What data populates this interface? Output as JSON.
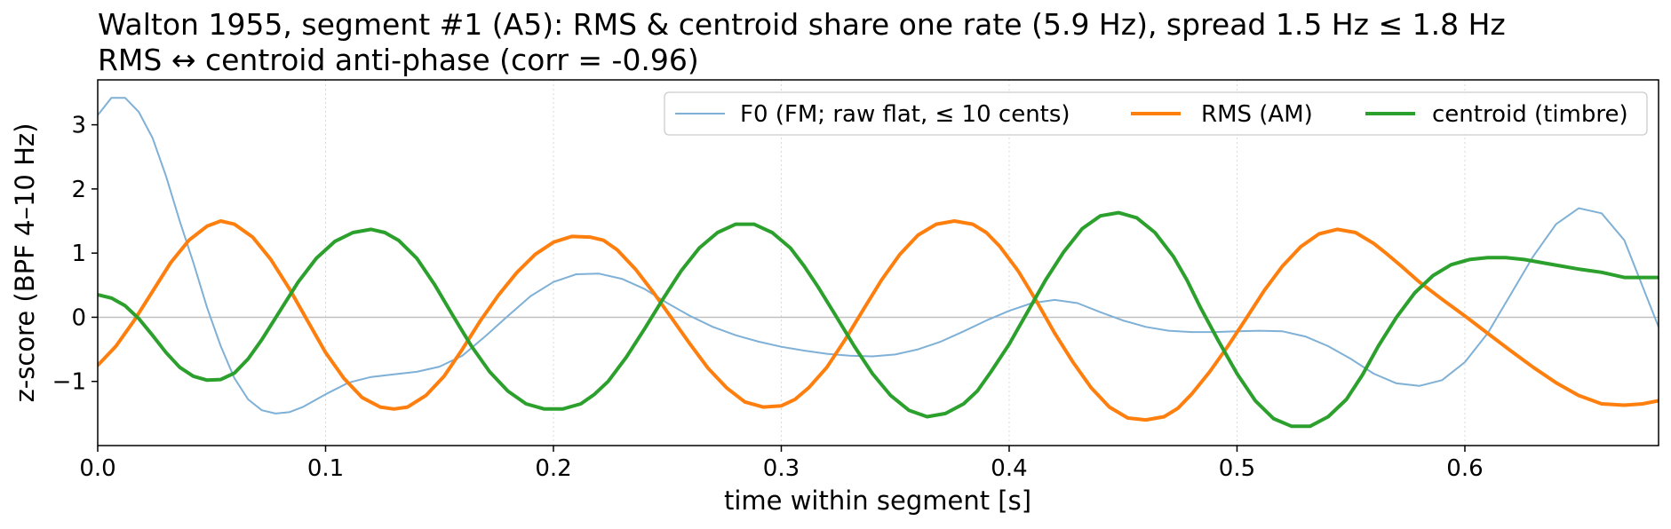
{
  "chart_data": {
    "type": "line",
    "title_line1": "Walton 1955, segment #1 (A5): RMS & centroid share one rate (5.9 Hz), spread 1.5 Hz ≤ 1.8 Hz",
    "title_line2": "RMS ↔ centroid anti-phase (corr = -0.96)",
    "xlabel": "time within segment [s]",
    "ylabel": "z-score (BPF 4–10 Hz)",
    "xlim": [
      0.0,
      0.685
    ],
    "ylim": [
      -2.0,
      3.7
    ],
    "xticks": [
      0.0,
      0.1,
      0.2,
      0.3,
      0.4,
      0.5,
      0.6
    ],
    "xtick_labels": [
      "0.0",
      "0.1",
      "0.2",
      "0.3",
      "0.4",
      "0.5",
      "0.6"
    ],
    "yticks": [
      -1,
      0,
      1,
      2,
      3
    ],
    "ytick_labels": [
      "−1",
      "0",
      "1",
      "2",
      "3"
    ],
    "grid": "vertical dotted",
    "zero_line": true,
    "legend": {
      "placement": "top-right",
      "columns": 3
    },
    "series": [
      {
        "name": "F0 (FM; raw flat, ≤ 10 cents)",
        "color": "#7fb0d6",
        "width": 2,
        "x": [
          0.0,
          0.006,
          0.012,
          0.018,
          0.024,
          0.03,
          0.036,
          0.042,
          0.048,
          0.054,
          0.06,
          0.066,
          0.072,
          0.078,
          0.084,
          0.09,
          0.1,
          0.11,
          0.12,
          0.13,
          0.14,
          0.15,
          0.16,
          0.17,
          0.18,
          0.19,
          0.2,
          0.21,
          0.22,
          0.23,
          0.24,
          0.25,
          0.26,
          0.27,
          0.28,
          0.29,
          0.3,
          0.31,
          0.32,
          0.33,
          0.34,
          0.35,
          0.36,
          0.37,
          0.38,
          0.39,
          0.4,
          0.41,
          0.42,
          0.43,
          0.44,
          0.45,
          0.46,
          0.47,
          0.48,
          0.49,
          0.5,
          0.51,
          0.52,
          0.53,
          0.54,
          0.55,
          0.56,
          0.57,
          0.58,
          0.59,
          0.6,
          0.61,
          0.62,
          0.63,
          0.64,
          0.65,
          0.66,
          0.67,
          0.685
        ],
        "y": [
          3.15,
          3.42,
          3.42,
          3.2,
          2.8,
          2.2,
          1.5,
          0.85,
          0.15,
          -0.45,
          -0.95,
          -1.28,
          -1.45,
          -1.5,
          -1.48,
          -1.4,
          -1.2,
          -1.02,
          -0.93,
          -0.89,
          -0.85,
          -0.77,
          -0.6,
          -0.3,
          0.02,
          0.33,
          0.55,
          0.67,
          0.68,
          0.6,
          0.44,
          0.22,
          0.02,
          -0.15,
          -0.28,
          -0.38,
          -0.46,
          -0.52,
          -0.57,
          -0.6,
          -0.61,
          -0.58,
          -0.5,
          -0.38,
          -0.22,
          -0.05,
          0.1,
          0.22,
          0.27,
          0.22,
          0.08,
          -0.05,
          -0.15,
          -0.21,
          -0.23,
          -0.23,
          -0.22,
          -0.21,
          -0.22,
          -0.3,
          -0.45,
          -0.65,
          -0.88,
          -1.03,
          -1.07,
          -0.98,
          -0.7,
          -0.25,
          0.35,
          0.95,
          1.45,
          1.7,
          1.62,
          1.2,
          -0.15
        ]
      },
      {
        "name": "RMS (AM)",
        "color": "#ff7f0e",
        "width": 4,
        "x": [
          0.0,
          0.008,
          0.016,
          0.024,
          0.032,
          0.04,
          0.048,
          0.054,
          0.06,
          0.068,
          0.076,
          0.084,
          0.092,
          0.1,
          0.108,
          0.116,
          0.124,
          0.13,
          0.136,
          0.144,
          0.152,
          0.16,
          0.168,
          0.176,
          0.184,
          0.192,
          0.2,
          0.208,
          0.216,
          0.222,
          0.228,
          0.236,
          0.244,
          0.252,
          0.26,
          0.268,
          0.276,
          0.284,
          0.292,
          0.3,
          0.306,
          0.312,
          0.32,
          0.328,
          0.336,
          0.344,
          0.352,
          0.36,
          0.368,
          0.376,
          0.384,
          0.39,
          0.396,
          0.404,
          0.412,
          0.42,
          0.428,
          0.436,
          0.444,
          0.452,
          0.46,
          0.468,
          0.474,
          0.48,
          0.488,
          0.496,
          0.504,
          0.512,
          0.52,
          0.528,
          0.536,
          0.544,
          0.552,
          0.56,
          0.566,
          0.572,
          0.58,
          0.59,
          0.6,
          0.61,
          0.62,
          0.63,
          0.64,
          0.65,
          0.66,
          0.67,
          0.678,
          0.685
        ],
        "y": [
          -0.75,
          -0.45,
          -0.05,
          0.4,
          0.85,
          1.2,
          1.42,
          1.5,
          1.45,
          1.25,
          0.9,
          0.45,
          -0.05,
          -0.55,
          -0.95,
          -1.25,
          -1.4,
          -1.43,
          -1.4,
          -1.22,
          -0.92,
          -0.5,
          -0.05,
          0.35,
          0.7,
          0.98,
          1.17,
          1.26,
          1.25,
          1.2,
          1.05,
          0.75,
          0.38,
          -0.02,
          -0.42,
          -0.8,
          -1.1,
          -1.32,
          -1.4,
          -1.38,
          -1.28,
          -1.1,
          -0.78,
          -0.35,
          0.12,
          0.58,
          0.98,
          1.28,
          1.45,
          1.5,
          1.45,
          1.32,
          1.1,
          0.72,
          0.25,
          -0.25,
          -0.7,
          -1.1,
          -1.4,
          -1.57,
          -1.6,
          -1.55,
          -1.42,
          -1.2,
          -0.85,
          -0.45,
          -0.02,
          0.42,
          0.8,
          1.1,
          1.3,
          1.37,
          1.32,
          1.15,
          0.98,
          0.8,
          0.55,
          0.28,
          0.02,
          -0.25,
          -0.52,
          -0.78,
          -1.02,
          -1.22,
          -1.35,
          -1.37,
          -1.35,
          -1.3
        ]
      },
      {
        "name": "centroid (timbre)",
        "color": "#2ca02c",
        "width": 4,
        "x": [
          0.0,
          0.006,
          0.012,
          0.018,
          0.024,
          0.03,
          0.036,
          0.042,
          0.048,
          0.054,
          0.06,
          0.066,
          0.072,
          0.08,
          0.088,
          0.096,
          0.104,
          0.112,
          0.12,
          0.126,
          0.132,
          0.14,
          0.148,
          0.156,
          0.164,
          0.172,
          0.18,
          0.188,
          0.196,
          0.204,
          0.212,
          0.218,
          0.224,
          0.232,
          0.24,
          0.248,
          0.256,
          0.264,
          0.272,
          0.28,
          0.288,
          0.296,
          0.304,
          0.31,
          0.316,
          0.324,
          0.332,
          0.34,
          0.348,
          0.356,
          0.364,
          0.372,
          0.38,
          0.386,
          0.392,
          0.4,
          0.408,
          0.416,
          0.424,
          0.432,
          0.44,
          0.448,
          0.456,
          0.464,
          0.472,
          0.478,
          0.484,
          0.492,
          0.5,
          0.508,
          0.516,
          0.524,
          0.532,
          0.54,
          0.548,
          0.555,
          0.562,
          0.57,
          0.578,
          0.586,
          0.594,
          0.602,
          0.61,
          0.618,
          0.626,
          0.634,
          0.642,
          0.65,
          0.66,
          0.67,
          0.685
        ],
        "y": [
          0.35,
          0.3,
          0.18,
          -0.02,
          -0.28,
          -0.55,
          -0.78,
          -0.92,
          -0.98,
          -0.97,
          -0.87,
          -0.65,
          -0.35,
          0.1,
          0.55,
          0.92,
          1.18,
          1.32,
          1.37,
          1.32,
          1.2,
          0.92,
          0.5,
          0.02,
          -0.45,
          -0.85,
          -1.15,
          -1.35,
          -1.43,
          -1.43,
          -1.35,
          -1.2,
          -1.0,
          -0.62,
          -0.18,
          0.28,
          0.72,
          1.08,
          1.32,
          1.45,
          1.45,
          1.32,
          1.08,
          0.8,
          0.48,
          0.02,
          -0.45,
          -0.88,
          -1.22,
          -1.45,
          -1.55,
          -1.5,
          -1.35,
          -1.15,
          -0.85,
          -0.42,
          0.08,
          0.58,
          1.02,
          1.38,
          1.58,
          1.63,
          1.55,
          1.32,
          0.95,
          0.58,
          0.15,
          -0.38,
          -0.88,
          -1.3,
          -1.58,
          -1.7,
          -1.7,
          -1.55,
          -1.28,
          -0.9,
          -0.45,
          0.0,
          0.38,
          0.65,
          0.82,
          0.9,
          0.93,
          0.93,
          0.9,
          0.85,
          0.8,
          0.75,
          0.7,
          0.62,
          0.62
        ]
      }
    ]
  },
  "colors": {
    "axis": "#000000",
    "grid": "#d9d9d9",
    "zero_line": "#c0c0c0",
    "legend_border": "#cccccc"
  }
}
